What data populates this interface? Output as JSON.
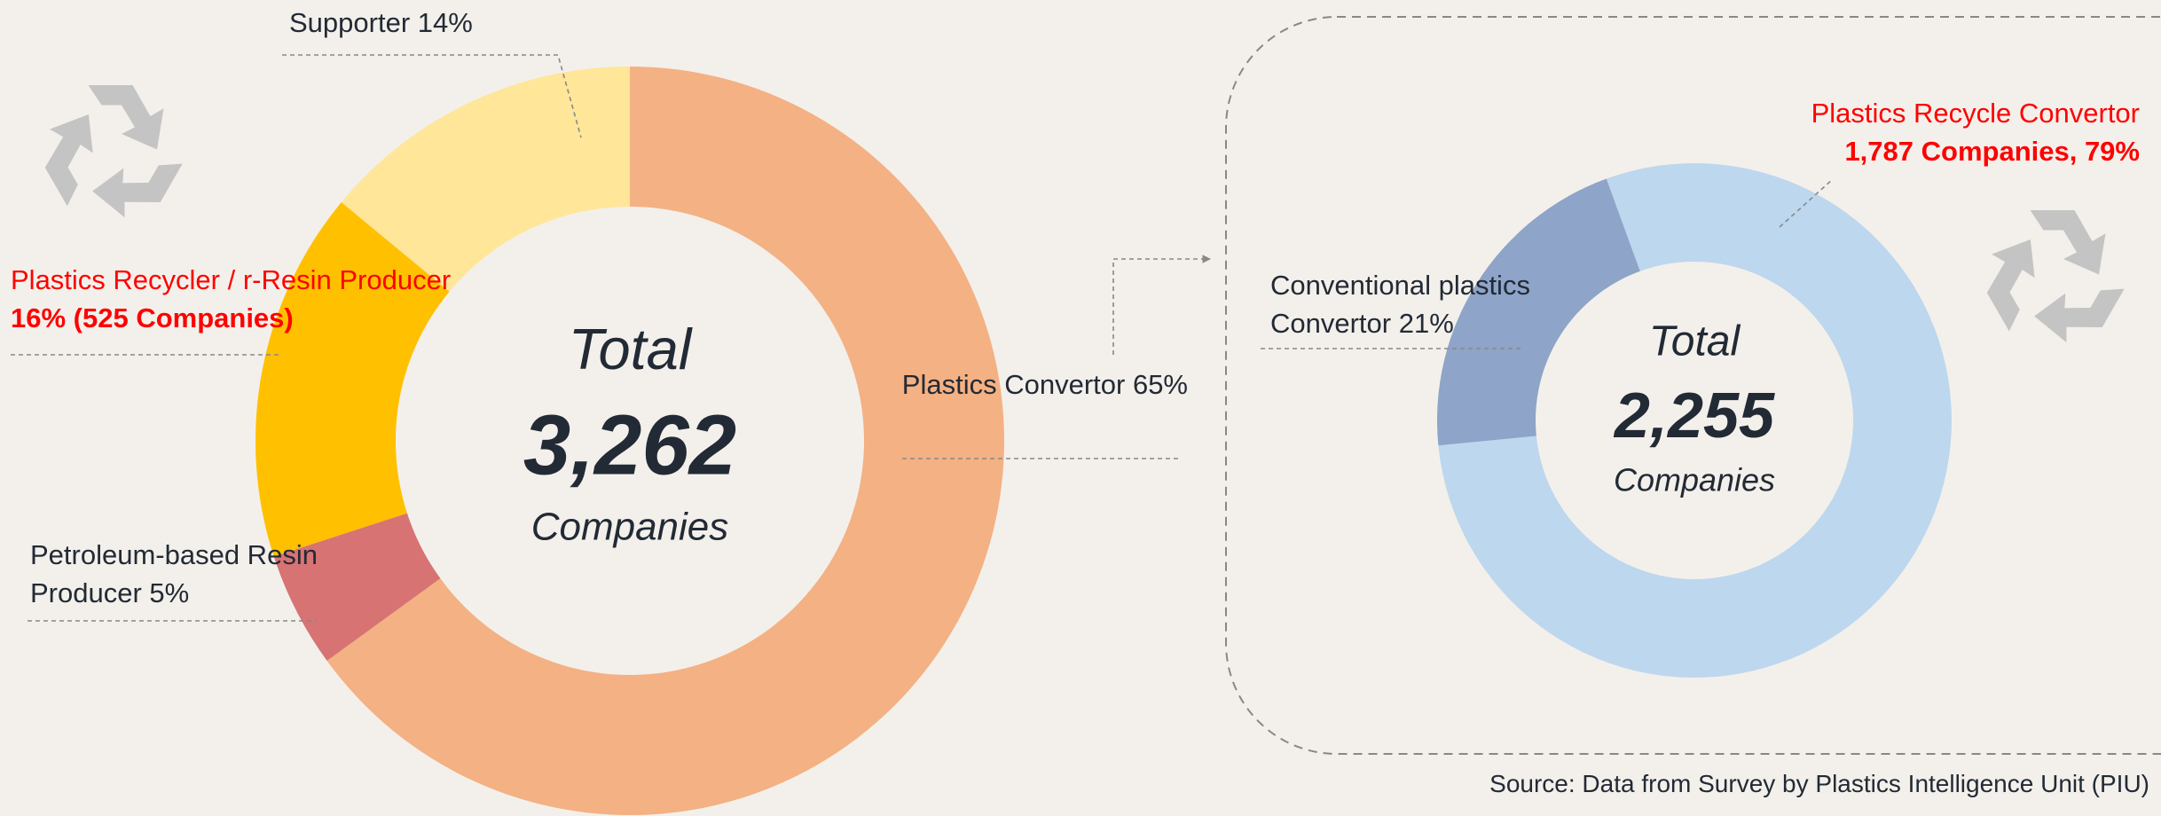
{
  "chart_data": [
    {
      "type": "donut",
      "center_text": {
        "title": "Total",
        "value": "3,262",
        "unit": "Companies"
      },
      "categories": [
        "Plastics Convertor",
        "Petroleum-based Resin Producer",
        "Plastics Recycler / r-Resin Producer",
        "Supporter"
      ],
      "values": [
        65,
        5,
        16,
        14
      ],
      "value_labels": [
        "65%",
        "5%",
        "16% (525 Companies)",
        "14%"
      ],
      "colors": [
        "#f4b183",
        "#d87373",
        "#ffc000",
        "#ffe699"
      ],
      "highlight": [
        false,
        false,
        true,
        false
      ]
    },
    {
      "type": "donut",
      "center_text": {
        "title": "Total",
        "value": "2,255",
        "unit": "Companies"
      },
      "categories": [
        "Plastics Recycle Convertor",
        "Conventional plastics Convertor"
      ],
      "values": [
        79,
        21
      ],
      "value_labels": [
        "1,787 Companies, 79%",
        "21%"
      ],
      "colors": [
        "#bdd7ee",
        "#8ea4c8"
      ],
      "highlight": [
        true,
        false
      ]
    }
  ],
  "source": "Source: Data from Survey by Plastics Intelligence Unit (PIU)"
}
